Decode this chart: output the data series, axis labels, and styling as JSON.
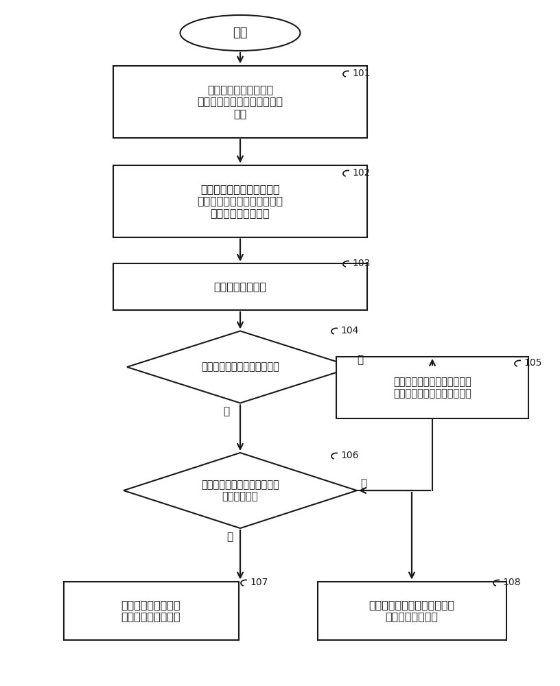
{
  "bg_color": "#ffffff",
  "line_color": "#1a1a1a",
  "text_color": "#1a1a1a",
  "fig_width": 8.16,
  "fig_height": 10.0,
  "font_size_body": 11.5,
  "font_size_small": 10.5,
  "font_size_ref": 10,
  "font_size_start": 13,
  "font_size_label": 11,
  "start_text": "开始",
  "box101_text": "获取发信机输出的发射\n信号功率组及对应失调校准信\n号组",
  "box102_text": "根据所述发信机输出的发射\n信号功率组及对应失调校准信\n号组，确定失调方向",
  "box103_text": "获取所述失调方向",
  "d104_text": "判断所述校准是否为首步校准",
  "box105_text": "校准步长为初始值，方向为失\n调方向，更新校准矩阵向量组",
  "d106_text": "判断此步失调方向是否与上步\n失调方向一致",
  "box107_text": "按照上步失调方向，\n更新校准矩阵向量组",
  "box108_text": "校准步长减半，方向取反，更\n新校准矩阵向量组",
  "yes_text": "是",
  "no_text": "否",
  "ref101": "101",
  "ref102": "102",
  "ref103": "103",
  "ref104": "104",
  "ref105": "105",
  "ref106": "106",
  "ref107": "107",
  "ref108": "108"
}
